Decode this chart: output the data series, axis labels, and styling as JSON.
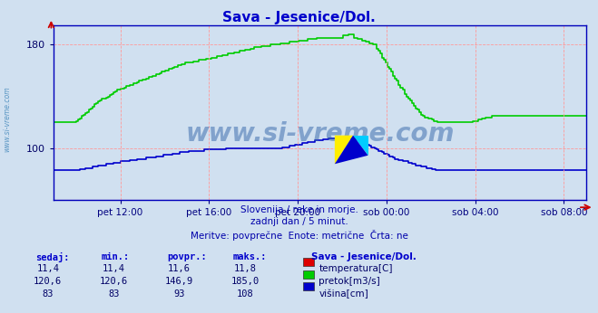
{
  "title": "Sava - Jesenice/Dol.",
  "title_color": "#0000cc",
  "bg_color": "#d0e0f0",
  "plot_bg_color": "#d0e0f0",
  "grid_color": "#ff9999",
  "xlabel_color": "#000080",
  "ylim": [
    60,
    195
  ],
  "y_ticks": [
    100,
    180
  ],
  "xlim": [
    0,
    288
  ],
  "x_tick_positions": [
    36,
    84,
    132,
    180,
    228,
    276
  ],
  "x_tick_labels": [
    "pet 12:00",
    "pet 16:00",
    "pet 20:00",
    "sob 00:00",
    "sob 04:00",
    "sob 08:00"
  ],
  "watermark_text": "www.si-vreme.com",
  "watermark_color": "#3366aa",
  "watermark_alpha": 0.5,
  "subtitle1": "Slovenija / reke in morje.",
  "subtitle2": "zadnji dan / 5 minut.",
  "subtitle3": "Meritve: povprečne  Enote: metrične  Črta: ne",
  "subtitle_color": "#0000aa",
  "legend_title": "Sava - Jesenice/Dol.",
  "legend_items": [
    {
      "label": "temperatura[C]",
      "color": "#dd0000"
    },
    {
      "label": "pretok[m3/s]",
      "color": "#00cc00"
    },
    {
      "label": "višina[cm]",
      "color": "#0000cc"
    }
  ],
  "stats_headers": [
    "sedaj:",
    "min.:",
    "povpr.:",
    "maks.:"
  ],
  "stats_values": [
    [
      "11,4",
      "11,4",
      "11,6",
      "11,8"
    ],
    [
      "120,6",
      "120,6",
      "146,9",
      "185,0"
    ],
    [
      "83",
      "83",
      "93",
      "108"
    ]
  ],
  "temp_color": "#cc0000",
  "pretok_color": "#00cc00",
  "visina_color": "#0000cc",
  "bottom_line_color": "#880088",
  "side_text_color": "#4488bb",
  "side_text": "www.si-vreme.com",
  "arrow_color": "#cc0000"
}
